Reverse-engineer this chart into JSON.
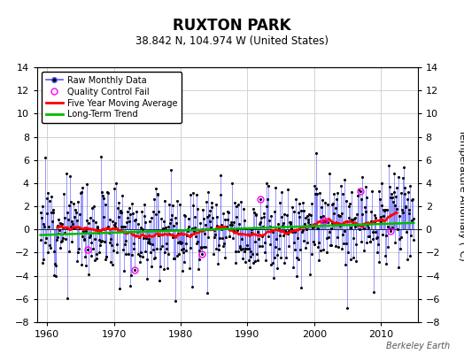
{
  "title": "RUXTON PARK",
  "subtitle": "38.842 N, 104.974 W (United States)",
  "ylabel": "Temperature Anomaly (°C)",
  "credit": "Berkeley Earth",
  "ylim": [
    -8,
    14
  ],
  "yticks": [
    -8,
    -6,
    -4,
    -2,
    0,
    2,
    4,
    6,
    8,
    10,
    12,
    14
  ],
  "xlim": [
    1958.5,
    2015.5
  ],
  "xticks": [
    1960,
    1970,
    1980,
    1990,
    2000,
    2010
  ],
  "year_start": 1959.0,
  "n_months": 672,
  "seed": 12,
  "bg_color": "#ffffff",
  "line_color": "#5555ff",
  "dot_color": "#000000",
  "moving_avg_color": "#ff0000",
  "trend_color": "#00bb00",
  "qc_color": "#ff00ff",
  "grid_color": "#cccccc",
  "qc_indices": [
    85,
    170,
    290,
    395,
    510,
    575,
    630
  ]
}
